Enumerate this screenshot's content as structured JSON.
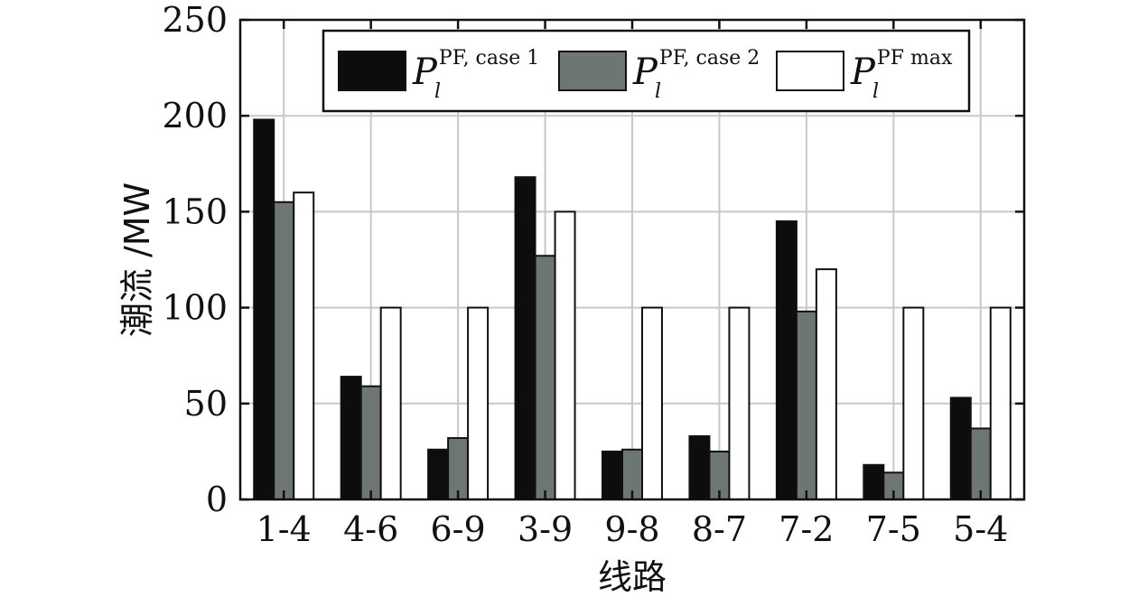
{
  "chart_data": {
    "type": "bar",
    "title": "",
    "xlabel": "线路",
    "ylabel": "潮流 /MW",
    "categories": [
      "1-4",
      "4-6",
      "6-9",
      "3-9",
      "9-8",
      "8-7",
      "7-2",
      "7-5",
      "5-4"
    ],
    "series": [
      {
        "name": "P_l^{PF, case 1}",
        "values": [
          198,
          64,
          26,
          168,
          25,
          33,
          145,
          18,
          53
        ],
        "color": "#0d0d0d"
      },
      {
        "name": "P_l^{PF, case 2}",
        "values": [
          155,
          59,
          32,
          127,
          26,
          25,
          98,
          14,
          37
        ],
        "color": "#6e7674"
      },
      {
        "name": "P_l^{PF max}",
        "values": [
          160,
          100,
          100,
          150,
          100,
          100,
          120,
          100,
          100
        ],
        "color": "#ffffff"
      }
    ],
    "legend_labels": [
      {
        "main": "P",
        "sub": "l",
        "sup": "PF, case 1"
      },
      {
        "main": "P",
        "sub": "l",
        "sup": "PF, case 2"
      },
      {
        "main": "P",
        "sub": "l",
        "sup": "PF max"
      }
    ],
    "ylim": [
      0,
      250
    ],
    "yticks": [
      0,
      50,
      100,
      150,
      200,
      250
    ],
    "grid": true,
    "legend_position": "top"
  }
}
